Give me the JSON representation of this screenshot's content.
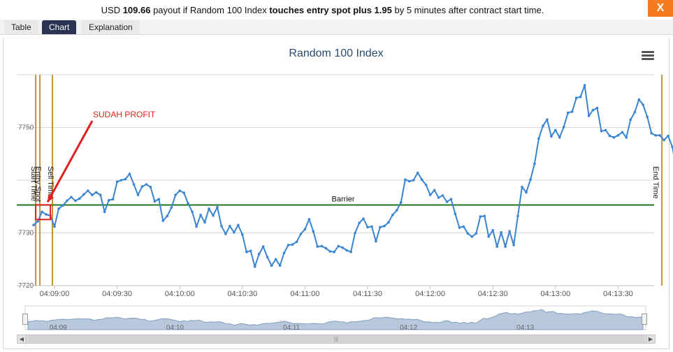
{
  "header": {
    "prefix": "USD ",
    "payout": "109.66",
    "mid1": " payout if Random 100 Index ",
    "condition": "touches entry spot plus 1.95",
    "mid2": " by 5 minutes after contract start time.",
    "close_label": "X"
  },
  "tabs": [
    {
      "label": "Table",
      "active": false
    },
    {
      "label": "Chart",
      "active": true
    },
    {
      "label": "Explanation",
      "active": false
    }
  ],
  "colors": {
    "line": "#3a84d0",
    "barrier": "#1e7a1e",
    "marker": "#c8923a",
    "annotation": "#e02020",
    "close": "#f47b20",
    "active_tab": "#2a3352",
    "navigator_fill": "#b9c9dd"
  },
  "chart_data": {
    "type": "line",
    "title": "Random 100 Index",
    "x_start": "04:08:50",
    "x_interval_seconds": 2,
    "y": [
      7731.5,
      7732.2,
      7734,
      7733.5,
      7733.3,
      7731.2,
      7734.6,
      7735.2,
      7736.1,
      7736.8,
      7736.1,
      7736.5,
      7737.3,
      7738,
      7737.2,
      7737.7,
      7737.2,
      7734,
      7736.2,
      7736.4,
      7739.7,
      7740,
      7740.2,
      7741.2,
      7739.2,
      7737.2,
      7738.8,
      7739.2,
      7738.7,
      7736,
      7736.4,
      7732.3,
      7733.2,
      7734.8,
      7737.2,
      7738,
      7737.6,
      7735.6,
      7734,
      7731.2,
      7733.4,
      7732,
      7734.6,
      7733.3,
      7734.9,
      7731.3,
      7729.8,
      7731.3,
      7730.1,
      7731.5,
      7729.7,
      7726.4,
      7726.6,
      7723.6,
      7726,
      7727.4,
      7725.4,
      7723.8,
      7725,
      7723.8,
      7726.2,
      7727.7,
      7727.8,
      7728.3,
      7729.8,
      7730.7,
      7732.6,
      7730.3,
      7727.4,
      7727.5,
      7727.1,
      7726.5,
      7726.4,
      7727.5,
      7727.2,
      7726.7,
      7726.4,
      7730,
      7731.9,
      7732.7,
      7731.1,
      7731.2,
      7728.4,
      7731.1,
      7731.3,
      7732,
      7733.4,
      7734.3,
      7735.8,
      7740.1,
      7739.8,
      7740,
      7741.4,
      7740.1,
      7739.1,
      7737.2,
      7738.1,
      7736.7,
      7737.1,
      7735.9,
      7736.4,
      7733.6,
      7731,
      7731.2,
      7729.9,
      7729.3,
      7729.9,
      7733.1,
      7733.2,
      7729.3,
      7730.5,
      7727.4,
      7730.1,
      7727.4,
      7730.3,
      7727.7,
      7733.2,
      7738.7,
      7737.7,
      7740.1,
      7743.1,
      7747.9,
      7750.3,
      7751.5,
      7748.3,
      7749.5,
      7748.1,
      7750.1,
      7752.8,
      7753,
      7755.6,
      7755.8,
      7758,
      7752.2,
      7753.3,
      7753.7,
      7749.3,
      7749.5,
      7748.4,
      7748.1,
      7748.5,
      7749.1,
      7748.1,
      7751.5,
      7752.9,
      7755.3,
      7754.3,
      7752,
      7748.9,
      7748.5,
      7748.5,
      7747.6,
      7748.4,
      7746.3,
      7741.9,
      7742.5,
      7740.6,
      7741.1,
      7742.3
    ],
    "ylim": [
      7720,
      7760
    ],
    "yticks": [
      "7750",
      "7730",
      "7720"
    ],
    "xticks": [
      "04:09:00",
      "04:09:30",
      "04:10:00",
      "04:10:30",
      "04:11:00",
      "04:11:30",
      "04:12:00",
      "04:12:30",
      "04:13:00",
      "04:13:30"
    ],
    "barrier": {
      "label": "Barrier",
      "value": 7735.3
    },
    "markers": [
      {
        "label": "Start Time",
        "time": "04:08:51"
      },
      {
        "label": "Entry Spot",
        "time": "04:08:53"
      },
      {
        "label": "Sell Time",
        "time": "04:08:59"
      },
      {
        "label": "End Time",
        "time": "04:13:51"
      }
    ],
    "annotation": "SUDAH PROFIT",
    "navigator_ticks": [
      "04:09",
      "04:10",
      "04:11",
      "04:12",
      "04:13"
    ]
  }
}
